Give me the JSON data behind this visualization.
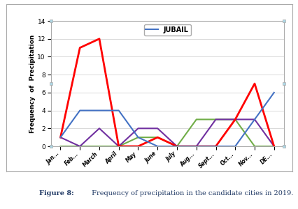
{
  "months": [
    "Jan...",
    "Feb...",
    "March",
    "April",
    "May",
    "June",
    "July",
    "Aug...",
    "Sept...",
    "Oct...",
    "Nov...",
    "DE..."
  ],
  "jubail": [
    1,
    4,
    4,
    4,
    1,
    0,
    0,
    0,
    0,
    0,
    3,
    6
  ],
  "red_city": [
    1,
    11,
    12,
    0,
    0,
    1,
    0,
    0,
    0,
    3,
    7,
    0
  ],
  "purple_city": [
    1,
    0,
    2,
    0,
    2,
    2,
    0,
    0,
    3,
    3,
    3,
    0
  ],
  "green_city": [
    0,
    0,
    0,
    0,
    1,
    1,
    0,
    3,
    3,
    3,
    0,
    0
  ],
  "jubail_color": "#4472c4",
  "red_color": "#ff0000",
  "purple_color": "#7030a0",
  "green_color": "#70ad47",
  "title": "JUBAIL",
  "ylabel": "Frequency  of  Precipitation",
  "ylim": [
    0,
    14
  ],
  "yticks": [
    0,
    2,
    4,
    6,
    8,
    10,
    12,
    14
  ],
  "caption_bold": "Figure 8",
  "caption_rest": ": Frequency of precipitation in the candidate cities in 2019.",
  "caption_color": "#1f3864",
  "background_color": "#ffffff",
  "grid_color": "#d9d9d9",
  "border_color": "#aaaaaa",
  "marker_color": "#add8e6",
  "figsize": [
    4.27,
    3.0
  ],
  "dpi": 100
}
